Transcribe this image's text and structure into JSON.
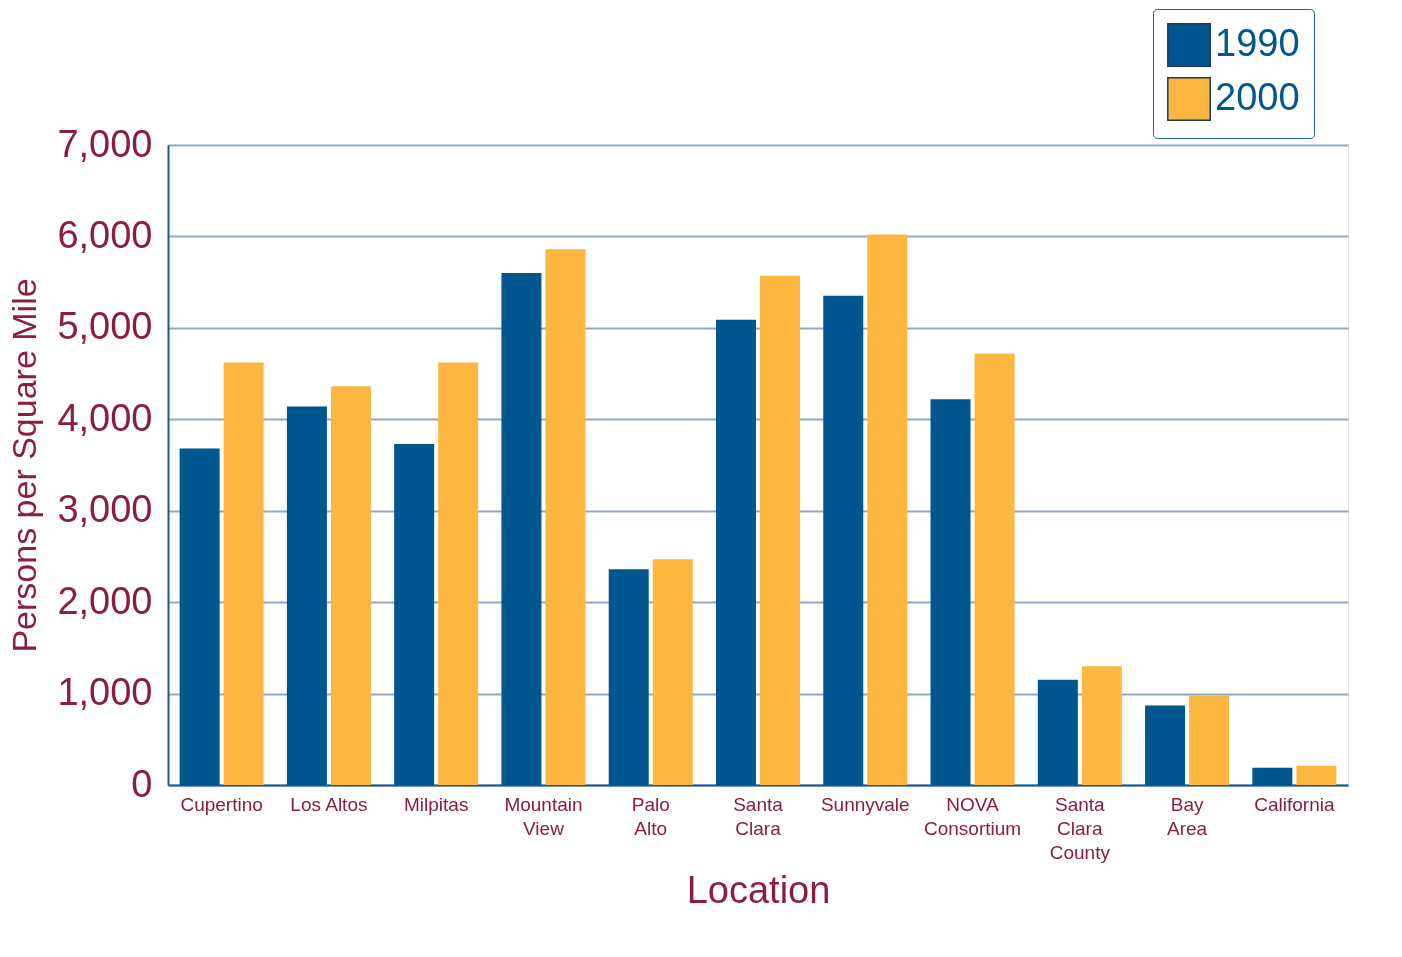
{
  "chart_data": {
    "type": "bar",
    "xlabel": "Location",
    "ylabel": "Persons per Square Mile",
    "categories": [
      "Cupertino",
      "Los Altos",
      "Milpitas",
      "Mountain\nView",
      "Palo\nAlto",
      "Santa\nClara",
      "Sunnyvale",
      "NOVA\nConsortium",
      "Santa\nClara\nCounty",
      "Bay\nArea",
      "California"
    ],
    "series": [
      {
        "name": "1990",
        "color": "#00568f",
        "values": [
          3680,
          4140,
          3730,
          5600,
          2360,
          5090,
          5350,
          4220,
          1150,
          870,
          190
        ]
      },
      {
        "name": "2000",
        "color": "#fdb640",
        "values": [
          4620,
          4360,
          4620,
          5860,
          2470,
          5570,
          6020,
          4720,
          1300,
          980,
          210
        ]
      }
    ],
    "ylim": [
      0,
      7000
    ],
    "yticks": [
      0,
      {
        "value": 1000,
        "label": "1,000"
      },
      {
        "value": 2000,
        "label": "2,000"
      },
      {
        "value": 3000,
        "label": "3,000"
      },
      {
        "value": 4000,
        "label": "4,000"
      },
      {
        "value": 5000,
        "label": "5,000"
      },
      {
        "value": 6000,
        "label": "6,000"
      },
      {
        "value": 7000,
        "label": "7,000"
      }
    ],
    "grid": "y",
    "legend": "top right"
  }
}
